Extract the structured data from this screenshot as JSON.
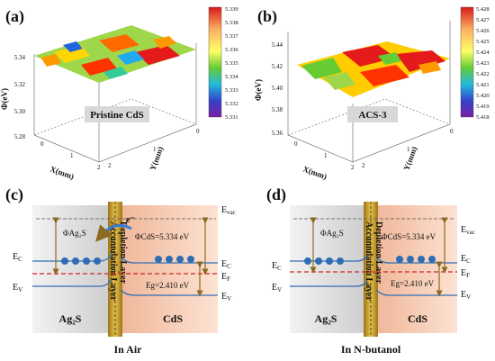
{
  "panels": {
    "a": {
      "label": "(a)",
      "surface_label": "Pristine CdS",
      "colorbar_ticks": [
        "5.339",
        "5.338",
        "5.337",
        "5.336",
        "5.335",
        "5.334",
        "5.333",
        "5.332",
        "5.331"
      ],
      "z_ticks": [
        "5.34",
        "5.32",
        "5.30",
        "5.28"
      ],
      "x_ticks": [
        "0",
        "1",
        "2"
      ],
      "y_ticks": [
        "2",
        "1",
        "0"
      ],
      "zlabel": "Φ(eV)",
      "xlabel": "X(mm)",
      "ylabel": "Y(mm)"
    },
    "b": {
      "label": "(b)",
      "surface_label": "ACS-3",
      "colorbar_ticks": [
        "5.428",
        "5.427",
        "5.426",
        "5.425",
        "5.424",
        "5.423",
        "5.422",
        "5.421",
        "5.420",
        "5.419",
        "5.418"
      ],
      "z_ticks": [
        "5.44",
        "5.42",
        "5.40",
        "5.38",
        "5.36"
      ],
      "x_ticks": [
        "0",
        "1",
        "2"
      ],
      "y_ticks": [
        "2",
        "1",
        "0"
      ],
      "zlabel": "Φ(eV)",
      "xlabel": "X(mm)",
      "ylabel": "Y(mm)"
    },
    "c": {
      "label": "(c)",
      "caption": "In Air",
      "left_material": "Ag₂S",
      "right_material": "CdS",
      "electron": "e⁻",
      "phi_ag2s": "ΦAg₂S",
      "phi_cds": "ΦCdS=5.334 eV",
      "eg": "Eg=2.410 eV",
      "ec_left": "E_C",
      "ev_left": "E_V",
      "evac": "E_vac",
      "ec_right": "E_C",
      "ef": "E_F",
      "ev_right": "E_V",
      "layer_text_1": "Depletion Layer",
      "layer_text_2": "Accumulation Layer"
    },
    "d": {
      "label": "(d)",
      "caption": "In N-butanol",
      "left_material": "Ag₂S",
      "right_material": "CdS",
      "phi_ag2s": "ΦAg₂S",
      "phi_cds": "ΦCdS=5.334 eV",
      "eg": "Eg=2.410 eV",
      "ec_left": "E_C",
      "ev_left": "E_V",
      "evac": "E_vac",
      "ec_right": "E_C",
      "ef": "E_F",
      "ev_right": "E_V",
      "layer_text_1": "Depletion Layer",
      "layer_text_2": "Accumulation Layer"
    }
  },
  "colors": {
    "ag2s_region": "#d8d8d8",
    "cds_region": "#f6c9ae",
    "interface": "#c9a227",
    "band_line": "#2f6fb5",
    "fermi_line": "#d0251f",
    "arrow": "#8b6b1f",
    "electron": "#2e6db4"
  }
}
